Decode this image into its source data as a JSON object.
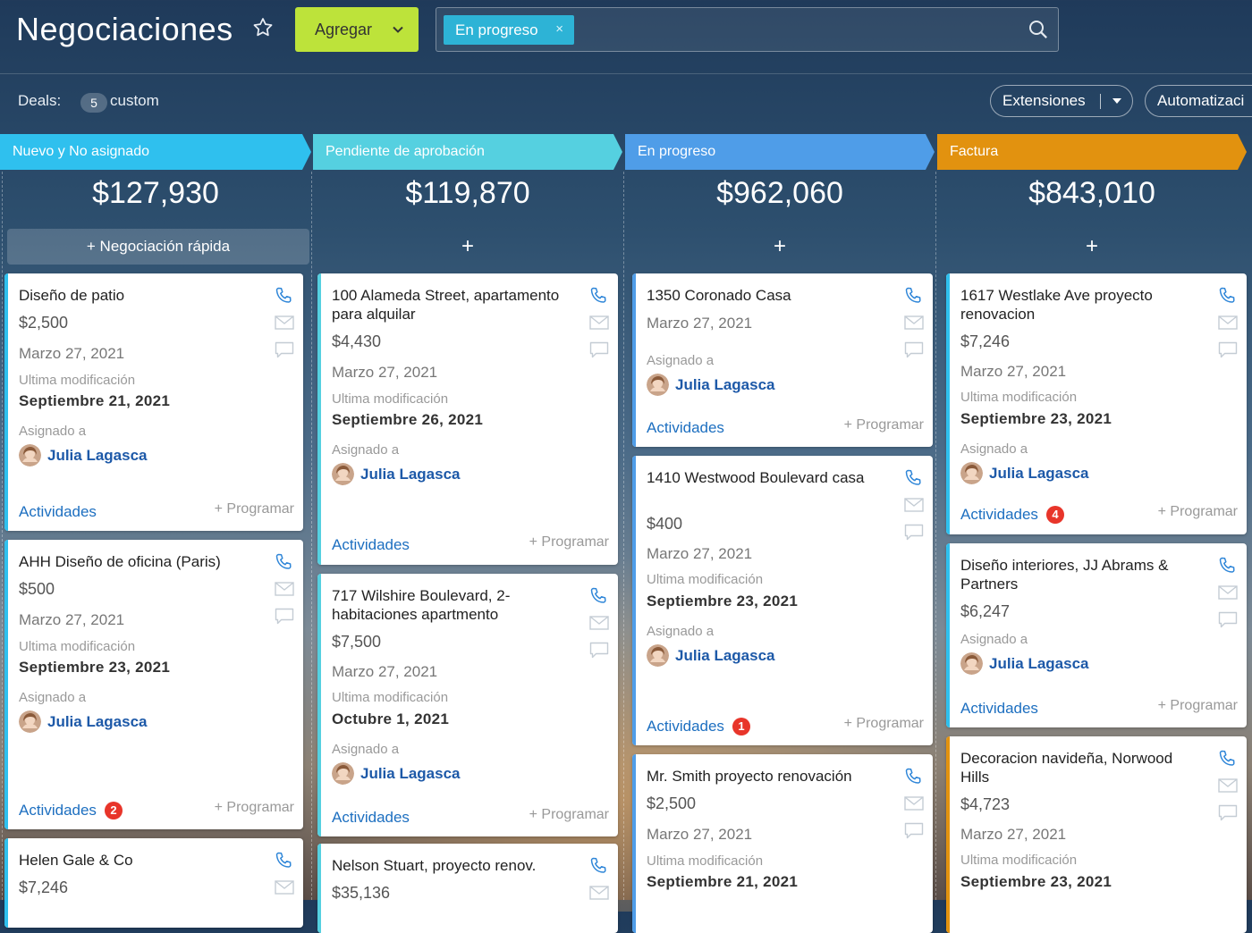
{
  "header": {
    "title": "Negociaciones",
    "add_label": "Agregar",
    "filter_chip": "En progreso",
    "filter_remove": "×"
  },
  "subbar": {
    "deals_label": "Deals:",
    "count": "5",
    "custom_label": "custom",
    "extensions_label": "Extensiones",
    "automation_label": "Automatizaci"
  },
  "columns": [
    {
      "name": "Nuevo y No asignado",
      "total": "$127,930",
      "color": "#2fc0ee",
      "quick_add": "+ Negociación rápida",
      "cards": [
        {
          "title": "Diseño de patio",
          "amount": "$2,500",
          "date": "Marzo 27, 2021",
          "modified_label": "Ultima modificación",
          "modified": "Septiembre 21, 2021",
          "assigned_label": "Asignado a",
          "assignee": "Julia Lagasca",
          "activities": "Actividades",
          "schedule": "+ Programar"
        },
        {
          "title": "AHH Diseño de oficina (Paris)",
          "amount": "$500",
          "date": "Marzo 27, 2021",
          "modified_label": "Ultima modificación",
          "modified": "Septiembre 23, 2021",
          "assigned_label": "Asignado a",
          "assignee": "Julia Lagasca",
          "activities": "Actividades",
          "badge": "2",
          "schedule": "+ Programar"
        },
        {
          "title": "Helen Gale & Co",
          "amount": "$7,246"
        }
      ]
    },
    {
      "name": "Pendiente de aprobación",
      "total": "$119,870",
      "color": "#55d0e0",
      "quick_add": "+",
      "cards": [
        {
          "title": "100 Alameda Street, apartamento para alquilar",
          "amount": "$4,430",
          "date": "Marzo 27, 2021",
          "modified_label": "Ultima modificación",
          "modified": "Septiembre 26, 2021",
          "assigned_label": "Asignado a",
          "assignee": "Julia Lagasca",
          "activities": "Actividades",
          "schedule": "+ Programar"
        },
        {
          "title": "717 Wilshire Boulevard, 2-habitaciones apartmento",
          "amount": "$7,500",
          "date": "Marzo 27, 2021",
          "modified_label": "Ultima modificación",
          "modified": "Octubre 1, 2021",
          "assigned_label": "Asignado a",
          "assignee": "Julia Lagasca",
          "activities": "Actividades",
          "schedule": "+ Programar"
        },
        {
          "title": "Nelson Stuart, proyecto renov.",
          "amount": "$35,136"
        }
      ]
    },
    {
      "name": "En progreso",
      "total": "$962,060",
      "color": "#4f9de8",
      "quick_add": "+",
      "cards": [
        {
          "title": "1350 Coronado Casa",
          "date": "Marzo 27, 2021",
          "assigned_label": "Asignado a",
          "assignee": "Julia Lagasca",
          "activities": "Actividades",
          "schedule": "+ Programar"
        },
        {
          "title": "1410 Westwood Boulevard casa",
          "amount": "$400",
          "date": "Marzo 27, 2021",
          "modified_label": "Ultima modificación",
          "modified": "Septiembre 23, 2021",
          "assigned_label": "Asignado a",
          "assignee": "Julia Lagasca",
          "activities": "Actividades",
          "badge": "1",
          "schedule": "+ Programar"
        },
        {
          "title": "Mr. Smith proyecto renovación",
          "amount": "$2,500",
          "date": "Marzo 27, 2021",
          "modified_label": "Ultima modificación",
          "modified": "Septiembre 21, 2021"
        }
      ]
    },
    {
      "name": "Factura",
      "total": "$843,010",
      "color": "#e2920f",
      "quick_add": "+",
      "cards": [
        {
          "title": "1617 Westlake Ave proyecto renovacion",
          "amount": "$7,246",
          "date": "Marzo 27, 2021",
          "modified_label": "Ultima modificación",
          "modified": "Septiembre 23, 2021",
          "assigned_label": "Asignado a",
          "assignee": "Julia Lagasca",
          "activities": "Actividades",
          "badge": "4",
          "schedule": "+ Programar"
        },
        {
          "title": "Diseño interiores, JJ Abrams & Partners",
          "amount": "$6,247",
          "assigned_label": "Asignado a",
          "assignee": "Julia Lagasca",
          "activities": "Actividades",
          "schedule": "+ Programar"
        },
        {
          "title": "Decoracion navideña, Norwood Hills",
          "amount": "$4,723",
          "date": "Marzo 27, 2021",
          "modified_label": "Ultima modificación",
          "modified": "Septiembre 23, 2021"
        }
      ]
    }
  ],
  "icons": {
    "star": "star-icon",
    "chevron": "chevron-down-icon",
    "search": "search-icon",
    "phone": "phone-icon",
    "mail": "mail-icon",
    "comment": "comment-icon",
    "avatar": "avatar"
  },
  "colors": {
    "add_button": "#bde33a",
    "filter_chip": "#2db3d6",
    "link": "#1d59a8",
    "badge": "#e8352a"
  }
}
